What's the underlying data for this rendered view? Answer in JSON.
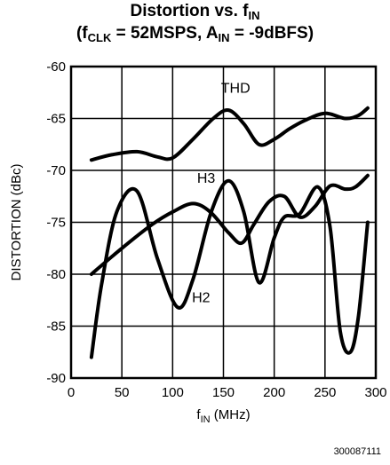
{
  "chart_data": {
    "type": "line",
    "title_line1": {
      "pre": "Distortion vs. f",
      "sub": "IN",
      "post": ""
    },
    "title_line2": {
      "p1": "(f",
      "s1": "CLK",
      "p2": " = 52MSPS, A",
      "s2": "IN",
      "p3": " = -9dBFS)"
    },
    "xlabel": {
      "pre": "f",
      "sub": "IN",
      "post": " (MHz)"
    },
    "ylabel": "DISTORTION (dBc)",
    "xlim": [
      0,
      300
    ],
    "ylim": [
      -90,
      -60
    ],
    "xticks": [
      0,
      50,
      100,
      150,
      200,
      250,
      300
    ],
    "yticks": [
      -90,
      -85,
      -80,
      -75,
      -70,
      -65,
      -60
    ],
    "grid": true,
    "series": [
      {
        "name": "THD",
        "x": [
          20,
          40,
          65,
          85,
          100,
          120,
          140,
          155,
          170,
          185,
          200,
          215,
          230,
          250,
          270,
          283,
          292
        ],
        "y": [
          -69,
          -68.5,
          -68.2,
          -68.7,
          -68.8,
          -67,
          -65,
          -64.2,
          -65.5,
          -67.5,
          -67,
          -66,
          -65.2,
          -64.5,
          -65,
          -64.7,
          -64
        ]
      },
      {
        "name": "H3",
        "x": [
          20,
          50,
          80,
          100,
          120,
          137,
          155,
          168,
          180,
          195,
          210,
          225,
          240,
          255,
          270,
          280,
          292
        ],
        "y": [
          -80,
          -77.5,
          -75.2,
          -74,
          -73.2,
          -74,
          -76,
          -77,
          -75.2,
          -73,
          -72.5,
          -74.5,
          -73.5,
          -71.5,
          -71.8,
          -71.6,
          -70.5
        ]
      },
      {
        "name": "H2",
        "x": [
          20,
          30,
          45,
          65,
          85,
          105,
          120,
          138,
          155,
          170,
          185,
          200,
          210,
          225,
          243,
          255,
          265,
          275,
          283,
          292
        ],
        "y": [
          -88,
          -81,
          -74,
          -72,
          -78.5,
          -83.2,
          -80.5,
          -74,
          -71,
          -74,
          -80.8,
          -76.5,
          -74.5,
          -74.2,
          -71.6,
          -75.5,
          -85.5,
          -87.5,
          -84,
          -75
        ]
      }
    ],
    "annotations": [
      {
        "text": "THD",
        "x": 162,
        "y": -62.5
      },
      {
        "text": "H3",
        "x": 133,
        "y": -71.2
      },
      {
        "text": "H2",
        "x": 128,
        "y": -82.7
      }
    ],
    "figure_id": "300087111"
  }
}
